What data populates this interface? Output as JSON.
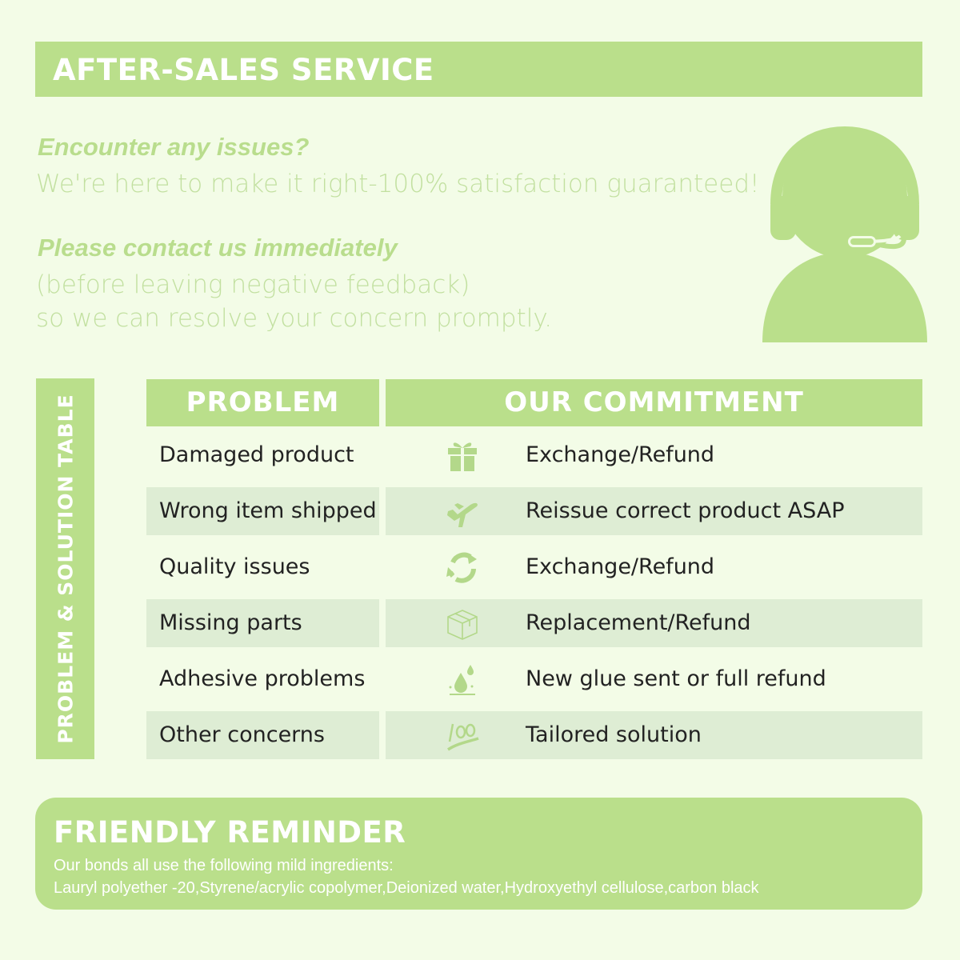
{
  "header": {
    "title": "AFTER-SALES SERVICE"
  },
  "intro": {
    "heading1": "Encounter any issues?",
    "line1": "We're here to make it right-100% satisfaction guaranteed!",
    "heading2": "Please contact us immediately",
    "line2": "(before leaving negative feedback)",
    "line3": "so we can resolve your concern promptly."
  },
  "table": {
    "side_label": "PROBLEM & SOLUTION TABLE",
    "col_problem": "PROBLEM",
    "col_commitment": "OUR COMMITMENT",
    "rows": [
      {
        "problem": "Damaged product",
        "icon": "gift-icon",
        "commitment": "Exchange/Refund"
      },
      {
        "problem": "Wrong item shipped",
        "icon": "airplane-icon",
        "commitment": "Reissue correct product ASAP"
      },
      {
        "problem": "Quality issues",
        "icon": "refresh-icon",
        "commitment": "Exchange/Refund"
      },
      {
        "problem": "Missing parts",
        "icon": "box-icon",
        "commitment": "Replacement/Refund"
      },
      {
        "problem": "Adhesive problems",
        "icon": "water-drop-icon",
        "commitment": "New glue sent or full refund"
      },
      {
        "problem": "Other concerns",
        "icon": "hundred-icon",
        "commitment": "Tailored solution"
      }
    ]
  },
  "reminder": {
    "title": "FRIENDLY REMINDER",
    "line1": "Our bonds all use the following mild ingredients:",
    "line2": "Lauryl polyether -20,Styrene/acrylic copolymer,Deionized water,Hydroxyethyl cellulose,carbon black"
  },
  "colors": {
    "accent": "#badf8b",
    "background": "#f3fce7",
    "row_shade": "#deedd4"
  }
}
